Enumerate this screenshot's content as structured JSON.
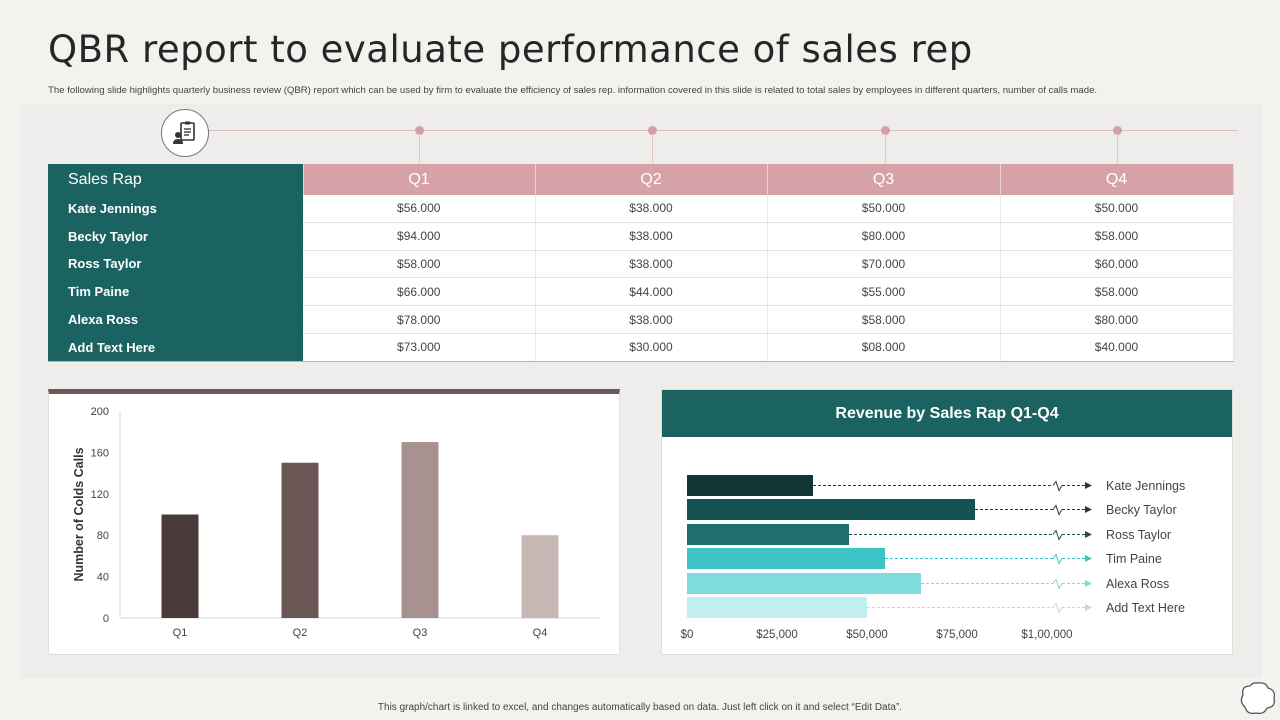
{
  "header": {
    "title": "QBR report to evaluate performance of sales rep",
    "subtitle": "The following slide highlights quarterly business review (QBR) report which can be used by firm to evaluate the efficiency of sales rep. information covered in this slide is related to total sales by employees in  different quarters, number of calls made."
  },
  "table": {
    "header_rep": "Sales Rap",
    "quarters": [
      "Q1",
      "Q2",
      "Q3",
      "Q4"
    ],
    "rows": [
      {
        "name": "Kate Jennings",
        "values": [
          "$56.000",
          "$38.000",
          "$50.000",
          "$50.000"
        ]
      },
      {
        "name": "Becky Taylor",
        "values": [
          "$94.000",
          "$38.000",
          "$80.000",
          "$58.000"
        ]
      },
      {
        "name": "Ross Taylor",
        "values": [
          "$58.000",
          "$38.000",
          "$70.000",
          "$60.000"
        ]
      },
      {
        "name": "Tim Paine",
        "values": [
          "$66.000",
          "$44.000",
          "$55.000",
          "$58.000"
        ]
      },
      {
        "name": "Alexa Ross",
        "values": [
          "$78.000",
          "$38.000",
          "$58.000",
          "$80.000"
        ]
      },
      {
        "name": "Add Text Here",
        "values": [
          "$73.000",
          "$30.000",
          "$08.000",
          "$40.000"
        ]
      }
    ]
  },
  "revenue_card": {
    "title": "Revenue by Sales Rap Q1-Q4"
  },
  "footer": {
    "note": "This graph/chart is linked to excel, and changes automatically based on data. Just left click on it and select “Edit Data”."
  },
  "colors": {
    "teal": "#1b6361",
    "pink": "#d6a2a8",
    "bars_calls": [
      "#4a3b3a",
      "#6b5656",
      "#a89191",
      "#c6b6b4"
    ],
    "bars_revenue": [
      "#0f3534",
      "#145351",
      "#1f706d",
      "#3cc4c7",
      "#7fdcde",
      "#c1eef0"
    ]
  },
  "chart_data": [
    {
      "type": "bar",
      "categories": [
        "Q1",
        "Q2",
        "Q3",
        "Q4"
      ],
      "values": [
        100,
        150,
        170,
        80
      ],
      "title": "",
      "xlabel": "",
      "ylabel": "Number of Colds Calls",
      "ylim": [
        0,
        200
      ],
      "yticks": [
        0,
        40,
        80,
        120,
        160,
        200
      ],
      "grid": false
    },
    {
      "type": "bar",
      "orientation": "horizontal",
      "title": "Revenue by Sales Rap Q1-Q4",
      "categories": [
        "Kate Jennings",
        "Becky Taylor",
        "Ross Taylor",
        "Tim Paine",
        "Alexa Ross",
        "Add Text Here"
      ],
      "values": [
        35000,
        80000,
        45000,
        55000,
        65000,
        50000
      ],
      "xlim": [
        0,
        100000
      ],
      "xticks": [
        "$0",
        "$25,000",
        "$50,000",
        "$75,000",
        "$1,00,000"
      ],
      "grid": false
    }
  ]
}
